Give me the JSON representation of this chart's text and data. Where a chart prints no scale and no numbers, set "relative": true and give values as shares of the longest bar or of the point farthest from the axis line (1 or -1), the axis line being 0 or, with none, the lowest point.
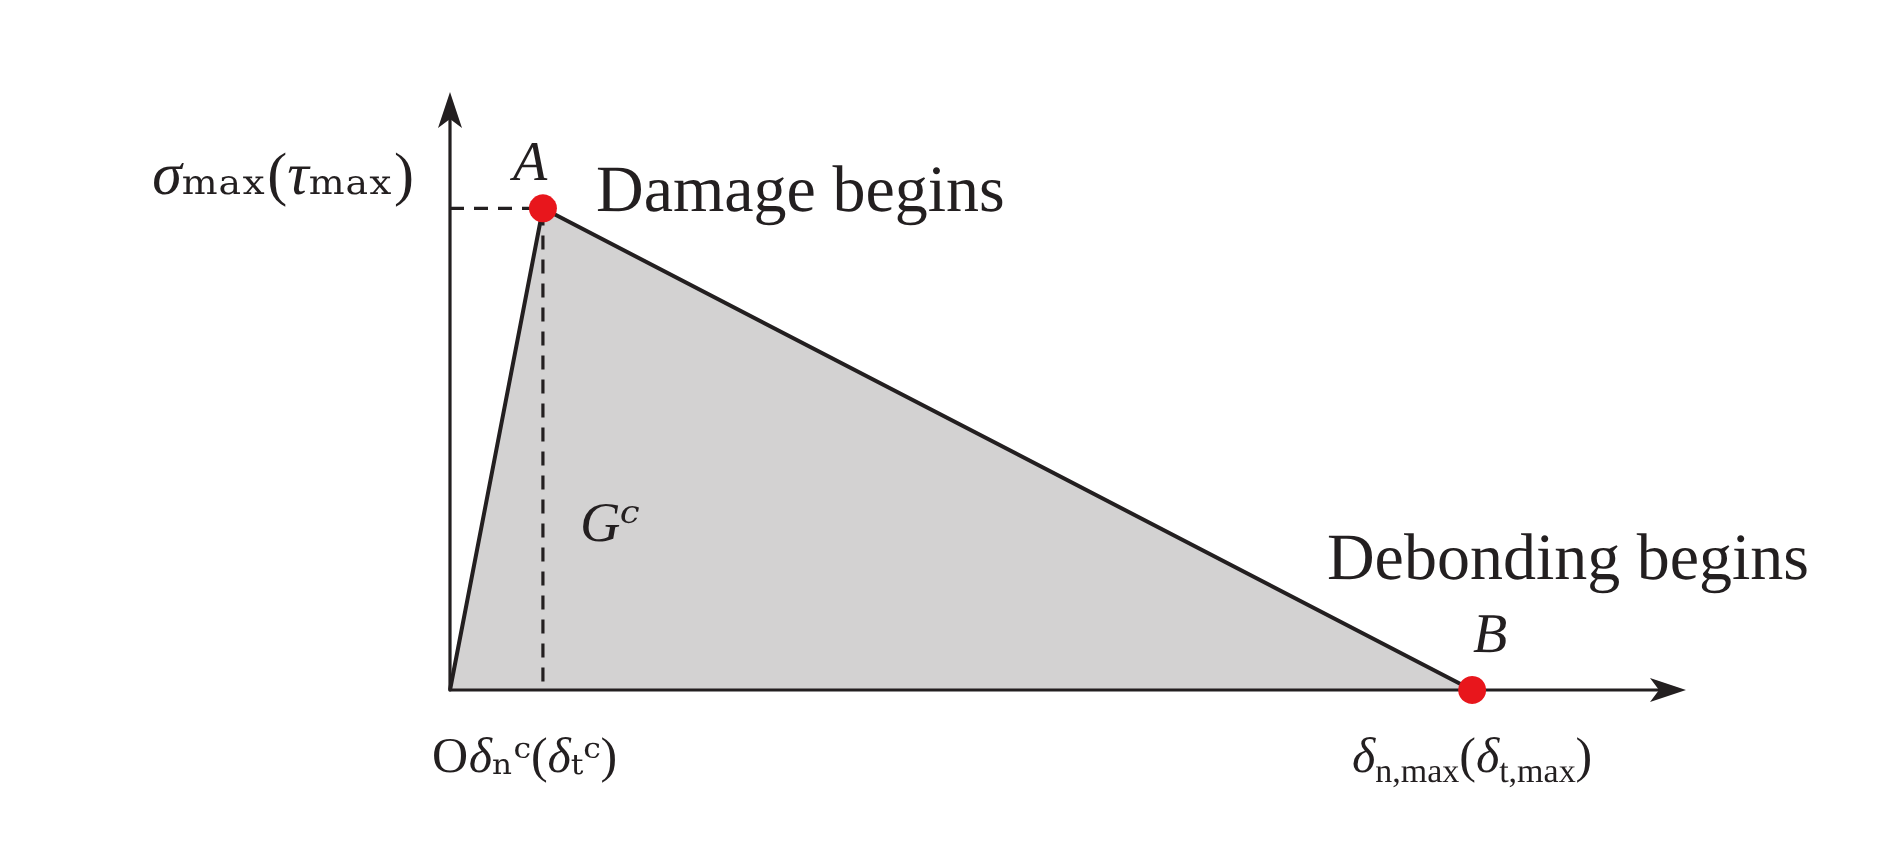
{
  "chart_data": {
    "type": "area",
    "relative": true,
    "marker": "none",
    "categories": [
      "O",
      "δₙᶜ(δₜᶜ)",
      null,
      null,
      null,
      null,
      null,
      null,
      null,
      null,
      null,
      "δ$_{n,max}$(δ$_{t,max}$)",
      null,
      null
    ],
    "series": [
      {
        "x": [
          "O",
          "δₙᶜ(δₜᶜ)",
          "δ$_{n,max}$(δ$_{t,max}$)"
        ],
        "values": [
          0,
          1,
          0
        ],
        "color": "#231f20"
      },
      {
        "type": "line",
        "x": [
          "O",
          "δₙᶜ(δₜᶜ)",
          "δₙᶜ(δₜᶜ)"
        ],
        "values": [
          1,
          1,
          0
        ],
        "color": "#231f20",
        "line_style": "dashed"
      },
      {
        "type": "scatter",
        "x": [
          "δₙᶜ(δₜᶜ)",
          "δ$_{n,max}$(δ$_{t,max}$)"
        ],
        "values": [
          1,
          0
        ],
        "color": "#e8161c",
        "marker": "circle"
      }
    ],
    "annotations": [
      "σₘₐₓ(τₘₐₓ)",
      "A",
      "Damage begins",
      "Gᶜ",
      "B",
      "Debonding begins"
    ]
  }
}
